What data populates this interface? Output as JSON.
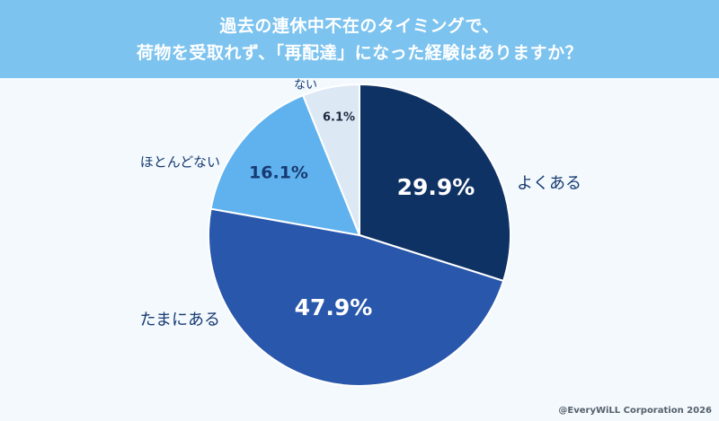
{
  "title": {
    "line1": "過去の連休中不在のタイミングで、",
    "line2": "荷物を受取れず、「再配達」になった経験はありますか？"
  },
  "chart_data": {
    "type": "pie",
    "start_angle_deg": 0,
    "direction": "clockwise",
    "slices": [
      {
        "label": "よくある",
        "value": 29.9,
        "value_label": "29.9%",
        "color": "#0f3264",
        "text_color": "#ffffff"
      },
      {
        "label": "たまにある",
        "value": 47.9,
        "value_label": "47.9%",
        "color": "#2957ab",
        "text_color": "#ffffff"
      },
      {
        "label": "ほとんどない",
        "value": 16.1,
        "value_label": "16.1%",
        "color": "#5fb2ee",
        "text_color": "#173a72"
      },
      {
        "label": "ない",
        "value": 6.1,
        "value_label": "6.1%",
        "color": "#dde8f5",
        "text_color": "#1d2a3f"
      }
    ]
  },
  "credit": "@EveryWiLL Corporation 2026"
}
